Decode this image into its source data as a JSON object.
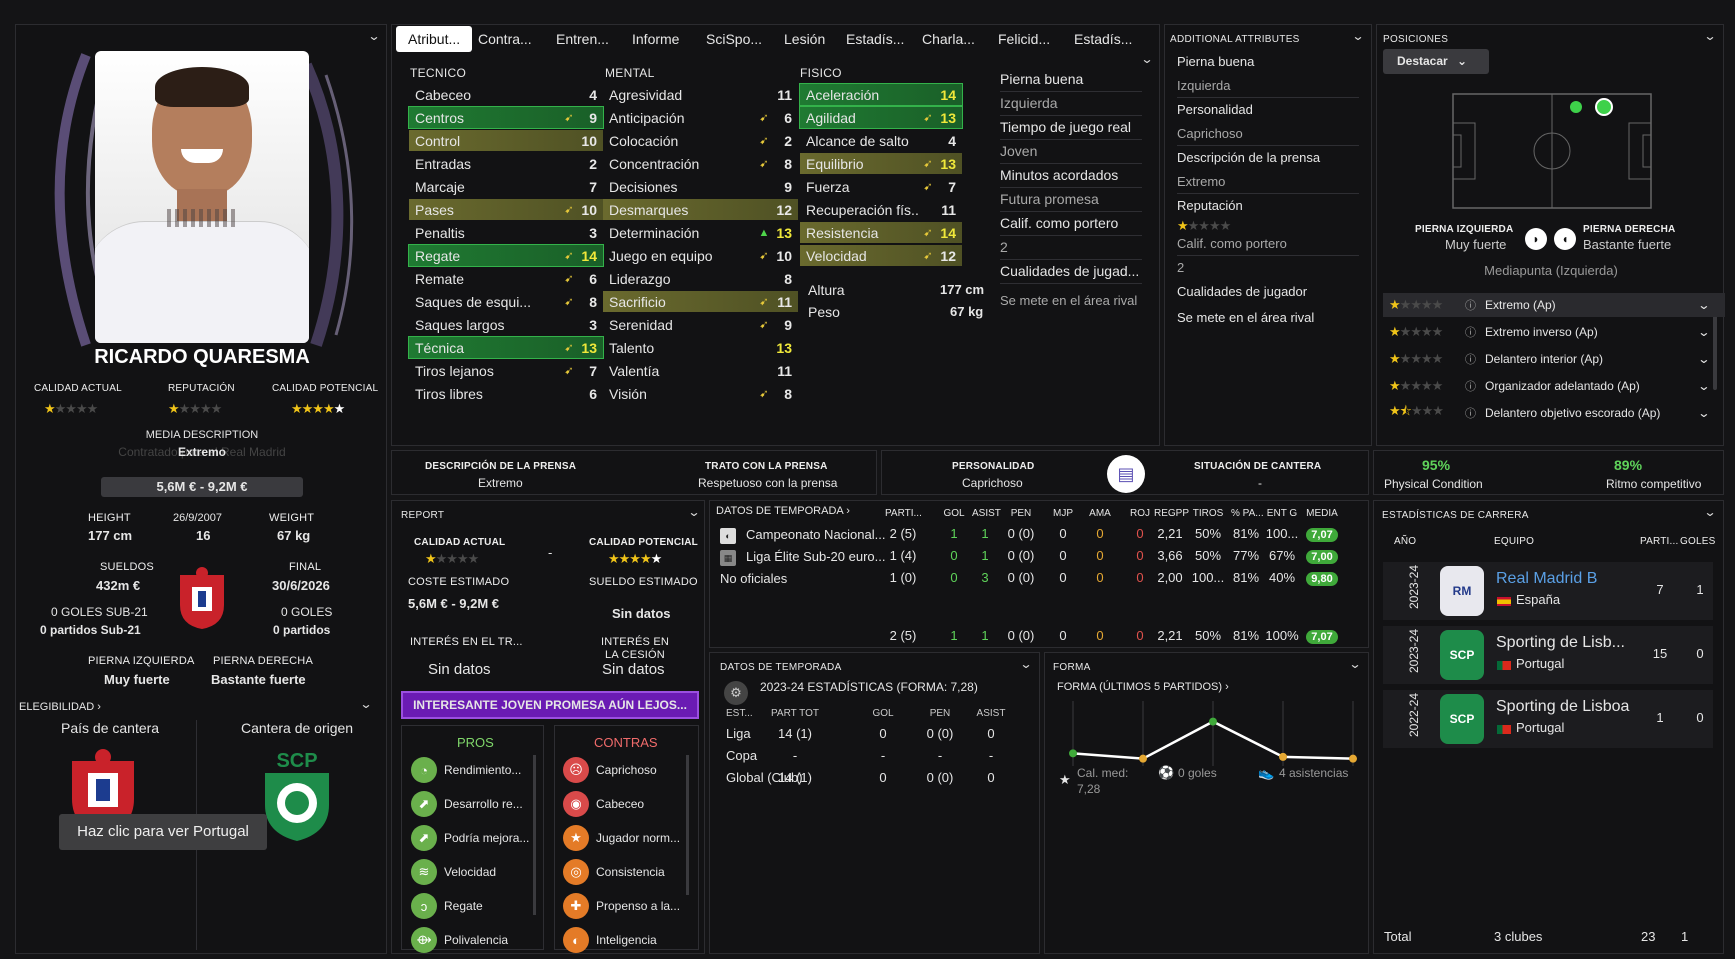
{
  "player": {
    "name": "RICARDO QUARESMA",
    "media_desc_label": "MEDIA DESCRIPTION",
    "media_desc_value": "Extremo",
    "media_desc_sub": "Contratado para el Real Madrid",
    "value_range": "5,6M € - 9,2M €",
    "labels": {
      "ca": "CALIDAD ACTUAL",
      "rep": "REPUTACIÓN",
      "cp": "CALIDAD POTENCIAL",
      "height": "HEIGHT",
      "weight": "WEIGHT",
      "wages": "SUELDOS",
      "final": "FINAL",
      "left_foot": "PIERNA IZQUIERDA",
      "right_foot": "PIERNA DERECHA"
    },
    "ca_stars": 1,
    "rep_stars": 1,
    "cp_stars": 4.5,
    "height": "177 cm",
    "dob": "26/9/2007",
    "age": "16",
    "weight": "67 kg",
    "wages": "432m €",
    "contract_end": "30/6/2026",
    "u21_goals": "0 GOLES SUB-21",
    "u21_apps": "0 partidos Sub-21",
    "goals": "0 GOLES",
    "apps": "0 partidos",
    "left_foot": "Muy fuerte",
    "right_foot": "Bastante fuerte",
    "elig_label": "ELEGIBILIDAD",
    "nation_label": "País de cantera",
    "club_label": "Cantera de origen",
    "tooltip": "Haz clic para ver Portugal"
  },
  "tabs": [
    "Atribut...",
    "Contra...",
    "Entren...",
    "Informe",
    "SciSpo...",
    "Lesión",
    "Estadís...",
    "Charla...",
    "Felicid...",
    "Estadís..."
  ],
  "attributes": {
    "tecnico_title": "TECNICO",
    "mental_title": "MENTAL",
    "fisico_title": "FISICO",
    "tecnico": [
      {
        "n": "Cabeceo",
        "v": "4",
        "a": "",
        "h": ""
      },
      {
        "n": "Centros",
        "v": "9",
        "a": "➹",
        "h": "green"
      },
      {
        "n": "Control",
        "v": "10",
        "a": "",
        "h": "olive"
      },
      {
        "n": "Entradas",
        "v": "2",
        "a": "",
        "h": ""
      },
      {
        "n": "Marcaje",
        "v": "7",
        "a": "",
        "h": ""
      },
      {
        "n": "Pases",
        "v": "10",
        "a": "➹",
        "h": "olive"
      },
      {
        "n": "Penaltis",
        "v": "3",
        "a": "",
        "h": ""
      },
      {
        "n": "Regate",
        "v": "14",
        "a": "➹",
        "h": "green"
      },
      {
        "n": "Remate",
        "v": "6",
        "a": "➹",
        "h": ""
      },
      {
        "n": "Saques de esqui...",
        "v": "8",
        "a": "➹",
        "h": ""
      },
      {
        "n": "Saques largos",
        "v": "3",
        "a": "",
        "h": ""
      },
      {
        "n": "Técnica",
        "v": "13",
        "a": "➹",
        "h": "green"
      },
      {
        "n": "Tiros lejanos",
        "v": "7",
        "a": "➹",
        "h": ""
      },
      {
        "n": "Tiros libres",
        "v": "6",
        "a": "",
        "h": ""
      }
    ],
    "mental": [
      {
        "n": "Agresividad",
        "v": "11",
        "a": "",
        "h": ""
      },
      {
        "n": "Anticipación",
        "v": "6",
        "a": "➹",
        "h": ""
      },
      {
        "n": "Colocación",
        "v": "2",
        "a": "➹",
        "h": ""
      },
      {
        "n": "Concentración",
        "v": "8",
        "a": "➹",
        "h": ""
      },
      {
        "n": "Decisiones",
        "v": "9",
        "a": "",
        "h": ""
      },
      {
        "n": "Desmarques",
        "v": "12",
        "a": "",
        "h": "olive"
      },
      {
        "n": "Determinación",
        "v": "13",
        "a": "▲",
        "h": ""
      },
      {
        "n": "Juego en equipo",
        "v": "10",
        "a": "➹",
        "h": ""
      },
      {
        "n": "Liderazgo",
        "v": "8",
        "a": "",
        "h": ""
      },
      {
        "n": "Sacrificio",
        "v": "11",
        "a": "➹",
        "h": "olive"
      },
      {
        "n": "Serenidad",
        "v": "9",
        "a": "➹",
        "h": ""
      },
      {
        "n": "Talento",
        "v": "13",
        "a": "",
        "h": ""
      },
      {
        "n": "Valentía",
        "v": "11",
        "a": "",
        "h": ""
      },
      {
        "n": "Visión",
        "v": "8",
        "a": "➹",
        "h": ""
      }
    ],
    "fisico": [
      {
        "n": "Aceleración",
        "v": "14",
        "a": "",
        "h": "green"
      },
      {
        "n": "Agilidad",
        "v": "13",
        "a": "➹",
        "h": "green"
      },
      {
        "n": "Alcance de salto",
        "v": "4",
        "a": "",
        "h": ""
      },
      {
        "n": "Equilibrio",
        "v": "13",
        "a": "➹",
        "h": "olive"
      },
      {
        "n": "Fuerza",
        "v": "7",
        "a": "➹",
        "h": ""
      },
      {
        "n": "Recuperación fís...",
        "v": "11",
        "a": "",
        "h": ""
      },
      {
        "n": "Resistencia",
        "v": "14",
        "a": "➹",
        "h": "olive"
      },
      {
        "n": "Velocidad",
        "v": "12",
        "a": "➹",
        "h": "olive"
      }
    ],
    "altura_label": "Altura",
    "altura": "177 cm",
    "peso_label": "Peso",
    "peso": "67 kg",
    "side": [
      "Pierna buena",
      "Izquierda",
      "Tiempo de juego real",
      "Joven",
      "Minutos acordados",
      "Futura promesa",
      "Calif. como portero",
      "2",
      "Cualidades de jugad...",
      "Se mete en el área rival"
    ]
  },
  "additional": {
    "title": "ADDITIONAL ATTRIBUTES",
    "items": [
      "Pierna buena",
      "Izquierda",
      "Personalidad",
      "Caprichoso",
      "Descripción de la prensa",
      "Extremo",
      "Reputación",
      "Calif. como portero",
      "2",
      "Cualidades de jugador",
      "Se mete en el área rival"
    ]
  },
  "positions": {
    "title": "POSICIONES",
    "button": "Destacar",
    "left_label": "PIERNA IZQUIERDA",
    "left_value": "Muy fuerte",
    "right_label": "PIERNA DERECHA",
    "right_value": "Bastante fuerte",
    "best": "Mediapunta (Izquierda)",
    "roles": [
      {
        "name": "Extremo (Ap)",
        "stars": 1
      },
      {
        "name": "Extremo inverso (Ap)",
        "stars": 1
      },
      {
        "name": "Delantero interior (Ap)",
        "stars": 1
      },
      {
        "name": "Organizador adelantado (Ap)",
        "stars": 1
      },
      {
        "name": "Delantero objetivo escorado (Ap)",
        "stars": 1.5
      }
    ]
  },
  "press": {
    "desc_label": "DESCRIPCIÓN DE LA PRENSA",
    "desc": "Extremo",
    "trato_label": "TRATO CON LA PRENSA",
    "trato": "Respetuoso con la prensa",
    "pers_label": "PERSONALIDAD",
    "pers": "Caprichoso",
    "cantera_label": "SITUACIÓN DE CANTERA",
    "cantera": "-"
  },
  "condition": {
    "phys_pct": "95%",
    "phys_label": "Physical Condition",
    "ritmo_pct": "89%",
    "ritmo_label": "Ritmo competitivo"
  },
  "report": {
    "title": "REPORT",
    "ca_label": "CALIDAD ACTUAL",
    "cp_label": "CALIDAD POTENCIAL",
    "dash": "-",
    "coste_label": "COSTE ESTIMADO",
    "coste": "5,6M € - 9,2M €",
    "sueldo_label": "SUELDO ESTIMADO",
    "sueldo": "Sin datos",
    "interes_tr_label": "INTERÉS EN EL TR...",
    "interes_tr": "Sin datos",
    "interes_ces_label": "INTERÉS EN LA CESIÓN",
    "interes_ces": "Sin datos",
    "banner": "INTERESANTE JOVEN PROMESA AÚN LEJOS...",
    "pros_title": "PROS",
    "contras_title": "CONTRAS",
    "pros": [
      "Rendimiento...",
      "Desarrollo re...",
      "Podría mejora...",
      "Velocidad",
      "Regate",
      "Polivalencia"
    ],
    "contras": [
      "Caprichoso",
      "Cabeceo",
      "Jugador norm...",
      "Consistencia",
      "Propenso a la...",
      "Inteligencia"
    ]
  },
  "season": {
    "title": "DATOS DE TEMPORADA",
    "cols": [
      "PARTI...",
      "GOL",
      "ASIST",
      "PEN",
      "MJP",
      "AMA",
      "ROJ",
      "REGPP",
      "TIROS",
      "% PA...",
      "ENT G",
      "MEDIA"
    ],
    "rows": [
      {
        "comp": "Campeonato Nacional...",
        "vals": [
          "2 (5)",
          "1",
          "1",
          "0 (0)",
          "0",
          "0",
          "0",
          "2,21",
          "50%",
          "81%",
          "100...",
          "7,07"
        ]
      },
      {
        "comp": "Liga Élite Sub-20 euro...",
        "vals": [
          "1 (4)",
          "0",
          "1",
          "0 (0)",
          "0",
          "0",
          "0",
          "3,66",
          "50%",
          "77%",
          "67%",
          "7,00"
        ]
      },
      {
        "comp": "No oficiales",
        "vals": [
          "1 (0)",
          "0",
          "3",
          "0 (0)",
          "0",
          "0",
          "0",
          "2,00",
          "100...",
          "81%",
          "40%",
          "9,80"
        ]
      }
    ],
    "total": [
      "2 (5)",
      "1",
      "1",
      "0 (0)",
      "0",
      "0",
      "0",
      "2,21",
      "50%",
      "81%",
      "100%",
      "7,07"
    ]
  },
  "season2": {
    "title": "DATOS DE TEMPORADA",
    "subtitle": "2023-24 ESTADÍSTICAS (FORMA: 7,28)",
    "cols": [
      "EST...",
      "PART TOT",
      "GOL",
      "PEN",
      "ASIST"
    ],
    "rows": [
      [
        "Liga",
        "14 (1)",
        "0",
        "0 (0)",
        "0"
      ],
      [
        "Copa",
        "-",
        "-",
        "-",
        "-"
      ],
      [
        "Global (Club)",
        "14 (1)",
        "0",
        "0 (0)",
        "0"
      ]
    ]
  },
  "form": {
    "title": "FORMA",
    "subtitle": "FORMA (ÚLTIMOS 5 PARTIDOS)",
    "values": [
      7.0,
      6.85,
      7.9,
      6.9,
      6.85
    ],
    "avg_label": "Cal. med:",
    "avg": "7,28",
    "goals": "0 goles",
    "assists": "4 asistencias"
  },
  "career": {
    "title": "ESTADÍSTICAS DE CARRERA",
    "cols": [
      "AÑO",
      "EQUIPO",
      "PARTI...",
      "GOLES"
    ],
    "rows": [
      {
        "year": "2023-24",
        "club": "Real Madrid B",
        "country": "España",
        "apps": "7",
        "goals": "1"
      },
      {
        "year": "2023-24",
        "club": "Sporting de Lisb...",
        "country": "Portugal",
        "apps": "15",
        "goals": "0"
      },
      {
        "year": "2022-24",
        "club": "Sporting de Lisboa",
        "country": "Portugal",
        "apps": "1",
        "goals": "0"
      }
    ],
    "total_label": "Total",
    "total_clubs": "3 clubes",
    "total_apps": "23",
    "total_goals": "1"
  },
  "colors": {
    "accent_green": "#3fa93a",
    "banner_purple": "#6a1bb3",
    "star_gold": "#f0c419"
  }
}
